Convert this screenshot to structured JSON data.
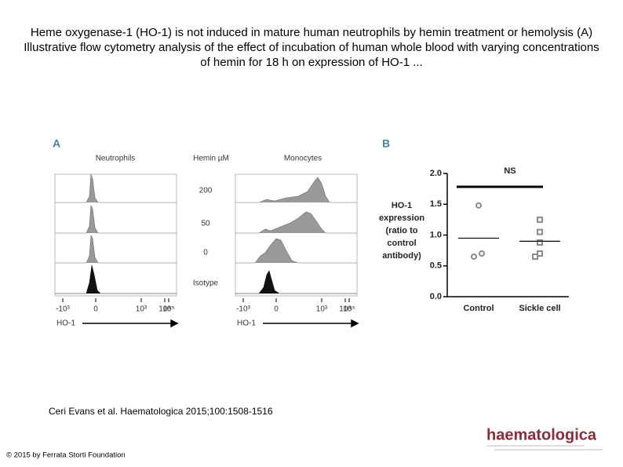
{
  "title": "Heme oxygenase-1 (HO-1) is not induced in mature human neutrophils by hemin treatment or hemolysis (A) Illustrative flow cytometry analysis of the effect of incubation of human whole blood with varying concentrations of hemin for 18 h on expression of HO-1 ...",
  "panel_a": {
    "label": "A",
    "left_header": "Neutrophils",
    "middle_header": "Hemin µM",
    "right_header": "Monocytes",
    "rows": [
      "200",
      "50",
      "0",
      "Isotype"
    ],
    "x_ticks": [
      "-10³",
      "0",
      "10³",
      "10⁴",
      "10⁵"
    ],
    "x_label": "HO-1"
  },
  "chart_data": {
    "type": "strip",
    "panel_label": "B",
    "ylabel_lines": [
      "HO-1",
      "expression",
      "(ratio to",
      "control",
      "antibody)"
    ],
    "categories": [
      "Control",
      "Sickle cell"
    ],
    "markers": [
      "circle",
      "square"
    ],
    "color": "#8a8a8a",
    "values": [
      [
        1.48,
        0.65,
        0.7
      ],
      [
        1.25,
        1.05,
        0.88,
        0.7,
        0.65
      ]
    ],
    "means": [
      0.95,
      0.9
    ],
    "annotation": "NS",
    "ylim": [
      0,
      2.0
    ],
    "yticks": [
      {
        "value": 0,
        "label": "0.0"
      },
      {
        "value": 0.5,
        "label": "0.5"
      },
      {
        "value": 1.0,
        "label": "1.0"
      },
      {
        "value": 1.5,
        "label": "1.5"
      },
      {
        "value": 2.0,
        "label": "2.0"
      }
    ]
  },
  "citation": "Ceri Evans et al. Haematologica 2015;100:1508-1516",
  "copyright": "© 2015 by Ferrata Storti Foundation",
  "logo": "haematologica"
}
